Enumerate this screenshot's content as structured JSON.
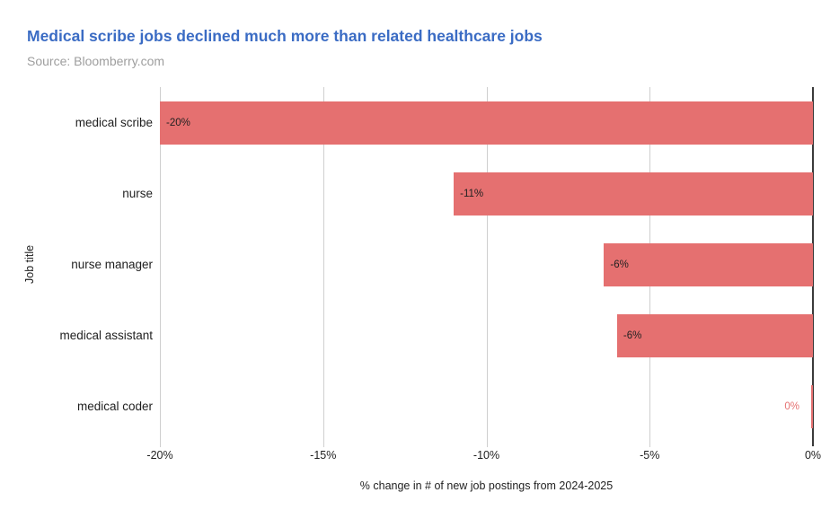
{
  "chart_data": {
    "type": "bar",
    "orientation": "horizontal",
    "title": "Medical scribe jobs declined much more than related healthcare jobs",
    "source": "Source: Bloomberry.com",
    "xlabel": "% change in # of new job postings from 2024-2025",
    "ylabel": "Job title",
    "xlim": [
      -20,
      0
    ],
    "grid": "vertical-only",
    "x_ticks": [
      "-20%",
      "-15%",
      "-10%",
      "-5%",
      "0%"
    ],
    "x_tick_values": [
      -20,
      -15,
      -10,
      -5,
      0
    ],
    "categories": [
      "medical scribe",
      "nurse",
      "nurse manager",
      "medical assistant",
      "medical coder"
    ],
    "values": [
      -20,
      -11,
      -6.4,
      -6,
      -0.05
    ],
    "value_labels": [
      "-20%",
      "-11%",
      "-6%",
      "-6%",
      "0%"
    ],
    "value_label_positions": [
      "inside",
      "inside",
      "inside",
      "inside",
      "outside"
    ],
    "colors": {
      "bar": "#e57070",
      "title": "#3b6cc4",
      "source": "#9e9e9e",
      "gridline": "#cfcfcf",
      "zero_axis": "#3a3a3a",
      "tick_text": "#1f1f1f",
      "value_label_inside": "#212121",
      "value_label_outside": "#e57070"
    }
  }
}
